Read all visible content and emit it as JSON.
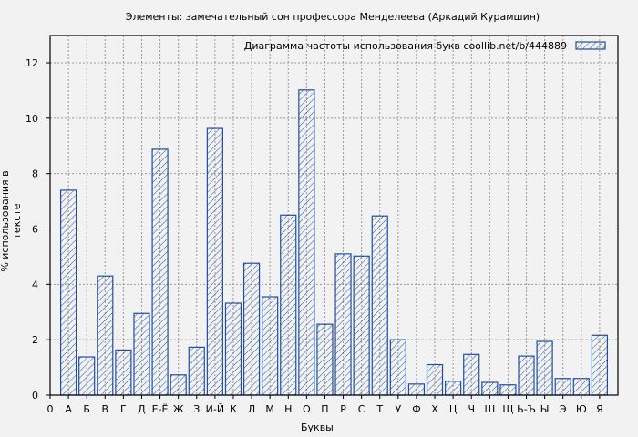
{
  "chart_data": {
    "type": "bar",
    "title": "Элементы: замечательный сон профессора Менделеева (Аркадий Курамшин)",
    "legend": "Диаграмма частоты использования букв  coollib.net/b/444889",
    "xlabel": "Буквы",
    "ylabel": "% использования в тексте",
    "ylim": [
      0,
      13
    ],
    "yticks": [
      0,
      2,
      4,
      6,
      8,
      10,
      12
    ],
    "x_origin_label": "0",
    "categories": [
      "А",
      "Б",
      "В",
      "Г",
      "Д",
      "Е-Ё",
      "Ж",
      "З",
      "И-Й",
      "К",
      "Л",
      "М",
      "Н",
      "О",
      "П",
      "Р",
      "С",
      "Т",
      "У",
      "Ф",
      "Х",
      "Ц",
      "Ч",
      "Ш",
      "Щ",
      "Ь-Ъ",
      "Ы",
      "Э",
      "Ю",
      "Я"
    ],
    "values": [
      7.4,
      1.38,
      4.3,
      1.63,
      2.95,
      8.88,
      0.73,
      1.73,
      9.63,
      3.32,
      4.76,
      3.55,
      6.5,
      11.02,
      2.56,
      5.1,
      5.02,
      6.47,
      2.0,
      0.4,
      1.1,
      0.5,
      1.47,
      0.46,
      0.37,
      1.41,
      1.94,
      0.6,
      0.6,
      2.16
    ],
    "grid": true,
    "legend_position": "top-right",
    "bar_color": "#1f4fa0"
  }
}
